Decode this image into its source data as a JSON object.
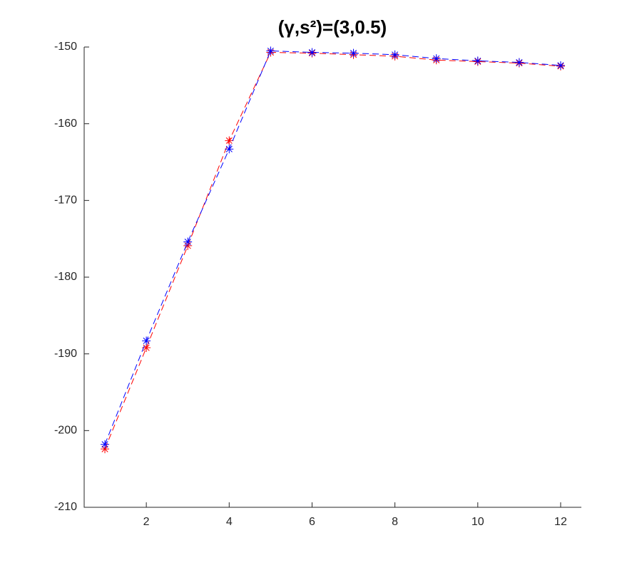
{
  "chart_data": {
    "type": "line",
    "title": "(γ,s²)=(3,0.5)",
    "x": [
      1,
      2,
      3,
      4,
      5,
      6,
      7,
      8,
      9,
      10,
      11,
      12
    ],
    "series": [
      {
        "color": "#ff0000",
        "values": [
          -202.4,
          -189.2,
          -175.9,
          -162.2,
          -150.7,
          -150.8,
          -151.0,
          -151.2,
          -151.7,
          -151.9,
          -152.1,
          -152.5
        ]
      },
      {
        "color": "#0000ff",
        "values": [
          -201.8,
          -188.3,
          -175.4,
          -163.3,
          -150.5,
          -150.7,
          -150.8,
          -151.0,
          -151.5,
          -151.8,
          -152.0,
          -152.4
        ]
      }
    ],
    "xlim": [
      0.5,
      12.5
    ],
    "xticks": [
      2,
      4,
      6,
      8,
      10,
      12
    ],
    "ylim": [
      -210,
      -150
    ],
    "yticks": [
      -210,
      -200,
      -190,
      -180,
      -170,
      -160,
      -150
    ],
    "grid": false,
    "line_style": "dashed",
    "marker": "asterisk"
  }
}
